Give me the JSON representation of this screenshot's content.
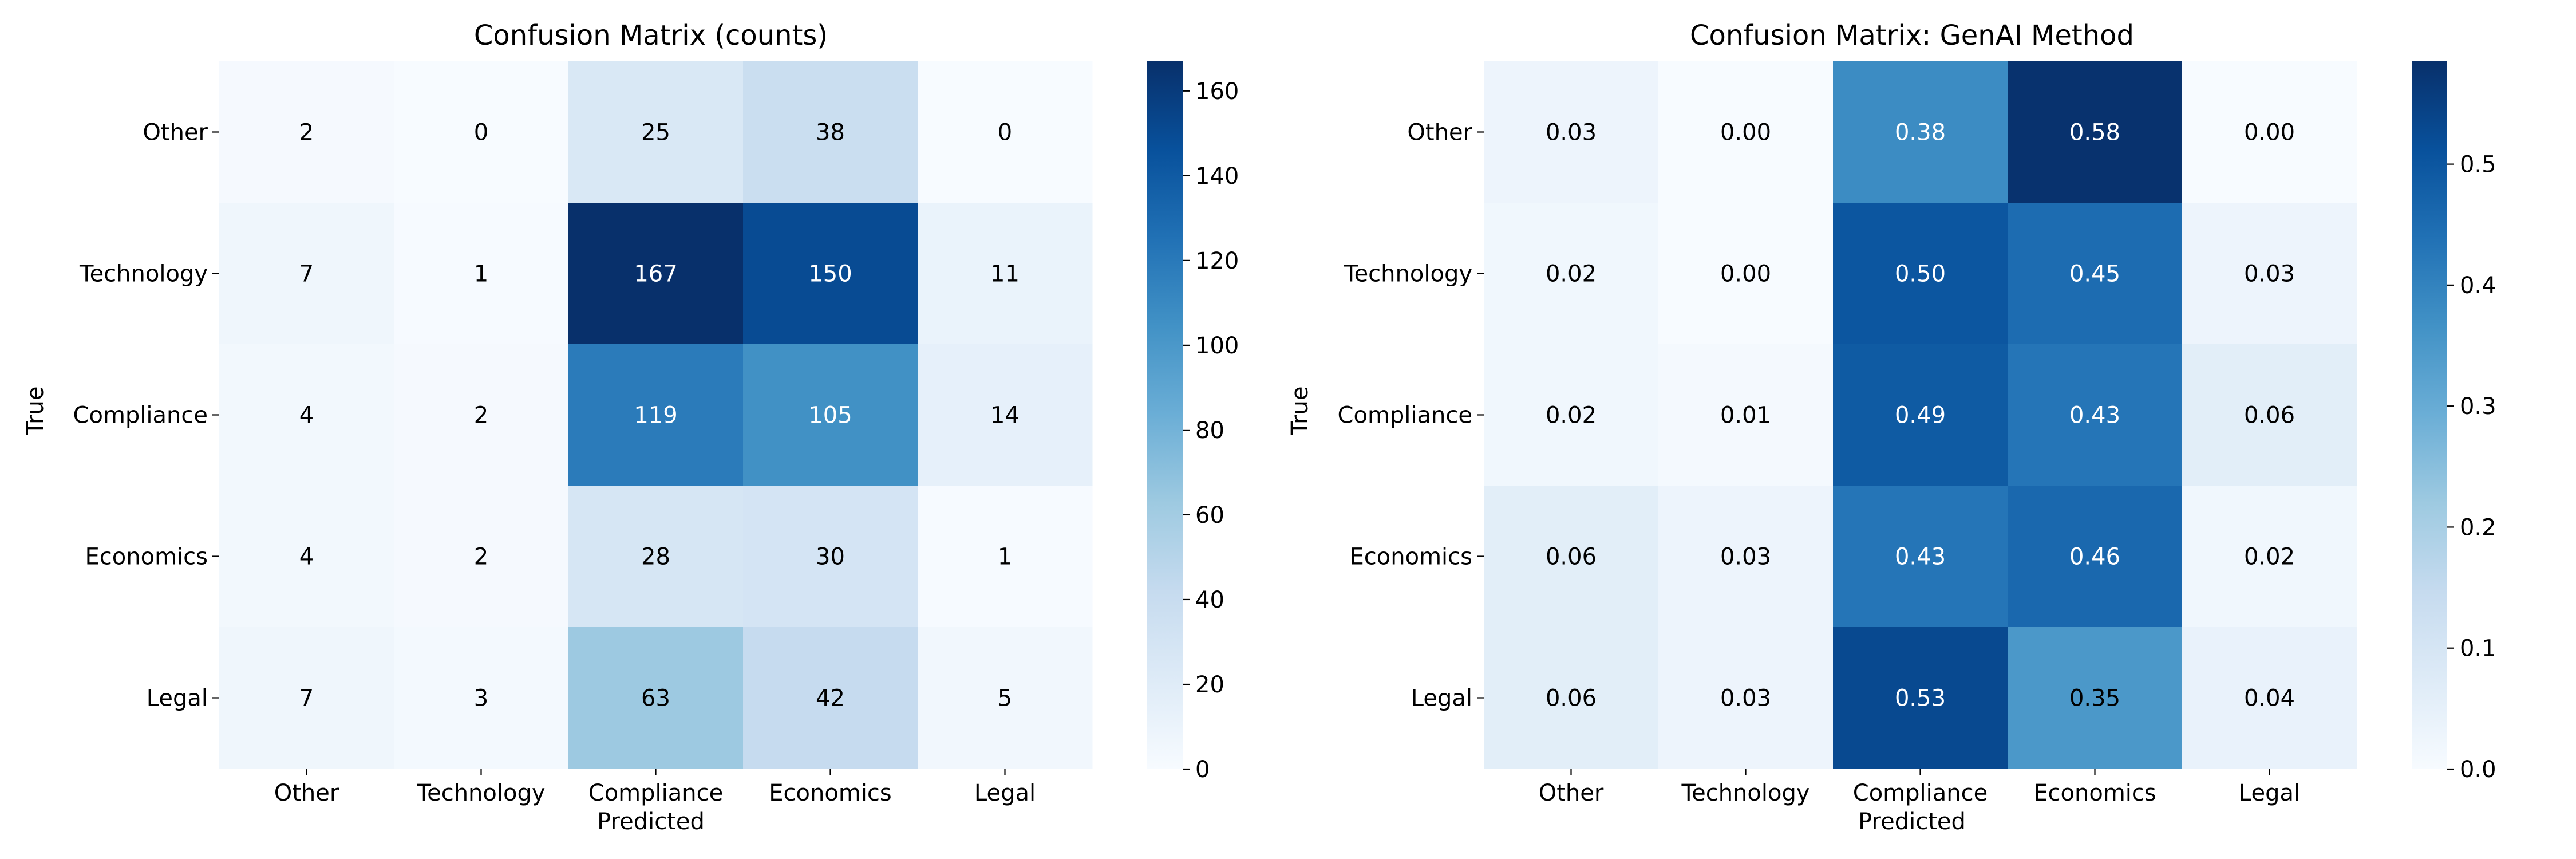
{
  "chart_data": [
    {
      "type": "heatmap",
      "title": "Confusion Matrix (counts)",
      "xlabel": "Predicted",
      "ylabel": "True",
      "x_categories": [
        "Other",
        "Technology",
        "Compliance",
        "Economics",
        "Legal"
      ],
      "y_categories": [
        "Other",
        "Technology",
        "Compliance",
        "Economics",
        "Legal"
      ],
      "values": [
        [
          2,
          0,
          25,
          38,
          0
        ],
        [
          7,
          1,
          167,
          150,
          11
        ],
        [
          4,
          2,
          119,
          105,
          14
        ],
        [
          4,
          2,
          28,
          30,
          1
        ],
        [
          7,
          3,
          63,
          42,
          5
        ]
      ],
      "value_labels": [
        [
          "2",
          "0",
          "25",
          "38",
          "0"
        ],
        [
          "7",
          "1",
          "167",
          "150",
          "11"
        ],
        [
          "4",
          "2",
          "119",
          "105",
          "14"
        ],
        [
          "4",
          "2",
          "28",
          "30",
          "1"
        ],
        [
          "7",
          "3",
          "63",
          "42",
          "5"
        ]
      ],
      "colormap": "Blues",
      "colorbar_range": [
        0,
        167
      ],
      "colorbar_ticks": [
        0,
        20,
        40,
        60,
        80,
        100,
        120,
        140,
        160
      ],
      "colorbar_tick_labels": [
        "0",
        "20",
        "40",
        "60",
        "80",
        "100",
        "120",
        "140",
        "160"
      ]
    },
    {
      "type": "heatmap",
      "title": "Confusion Matrix: GenAI Method",
      "xlabel": "Predicted",
      "ylabel": "True",
      "x_categories": [
        "Other",
        "Technology",
        "Compliance",
        "Economics",
        "Legal"
      ],
      "y_categories": [
        "Other",
        "Technology",
        "Compliance",
        "Economics",
        "Legal"
      ],
      "values": [
        [
          0.03,
          0.0,
          0.38,
          0.58,
          0.0
        ],
        [
          0.02,
          0.0,
          0.5,
          0.45,
          0.03
        ],
        [
          0.02,
          0.01,
          0.49,
          0.43,
          0.06
        ],
        [
          0.06,
          0.03,
          0.43,
          0.46,
          0.02
        ],
        [
          0.06,
          0.03,
          0.53,
          0.35,
          0.04
        ]
      ],
      "value_labels": [
        [
          "0.03",
          "0.00",
          "0.38",
          "0.58",
          "0.00"
        ],
        [
          "0.02",
          "0.00",
          "0.50",
          "0.45",
          "0.03"
        ],
        [
          "0.02",
          "0.01",
          "0.49",
          "0.43",
          "0.06"
        ],
        [
          "0.06",
          "0.03",
          "0.43",
          "0.46",
          "0.02"
        ],
        [
          "0.06",
          "0.03",
          "0.53",
          "0.35",
          "0.04"
        ]
      ],
      "colormap": "Blues",
      "colorbar_range": [
        0,
        0.585
      ],
      "colorbar_ticks": [
        0,
        0.1,
        0.2,
        0.3,
        0.4,
        0.5
      ],
      "colorbar_tick_labels": [
        "0.0",
        "0.1",
        "0.2",
        "0.3",
        "0.4",
        "0.5"
      ]
    }
  ]
}
